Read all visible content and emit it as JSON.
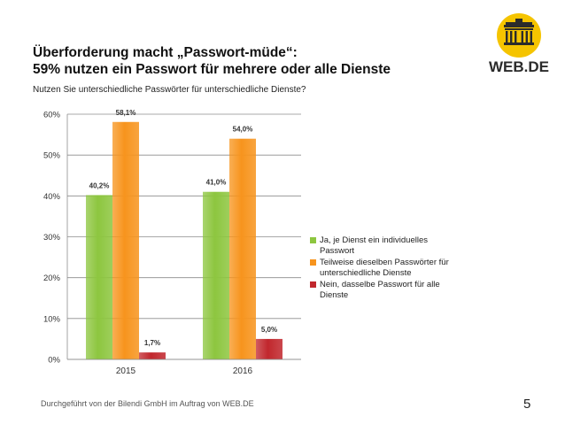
{
  "slide": {
    "title_line1": "Überforderung macht „Passwort-müde“:",
    "title_line2": "59% nutzen ein Passwort für mehrere oder alle Dienste",
    "subtitle": "Nutzen Sie unterschiedliche Passwörter für unterschiedliche Dienste?",
    "footer": "Durchgeführt von der Bilendi GmbH im Auftrag von WEB.DE",
    "page_number": "5",
    "logo_text": "WEB.DE",
    "logo_icon": "brandenburg-gate-icon",
    "brand_color": "#f5c400"
  },
  "chart_data": {
    "type": "bar",
    "title": "",
    "xlabel": "",
    "ylabel": "",
    "categories": [
      "2015",
      "2016"
    ],
    "ylim": [
      0,
      60
    ],
    "yticks": [
      0,
      10,
      20,
      30,
      40,
      50,
      60
    ],
    "ytick_labels": [
      "0%",
      "10%",
      "20%",
      "30%",
      "40%",
      "50%",
      "60%"
    ],
    "grid": true,
    "legend_position": "right",
    "series": [
      {
        "name": "Ja, je Dienst ein individuelles Passwort",
        "values": [
          40.2,
          41.0
        ],
        "labels": [
          "40,2%",
          "41,0%"
        ],
        "color": "#8dc63f"
      },
      {
        "name": "Teilweise dieselben Passwörter für unterschiedliche Dienste",
        "values": [
          58.1,
          54.0
        ],
        "labels": [
          "58,1%",
          "54,0%"
        ],
        "color": "#f7941d"
      },
      {
        "name": "Nein, dasselbe Passwort für alle Dienste",
        "values": [
          1.7,
          5.0
        ],
        "labels": [
          "1,7%",
          "5,0%"
        ],
        "color": "#c1272d"
      }
    ]
  }
}
